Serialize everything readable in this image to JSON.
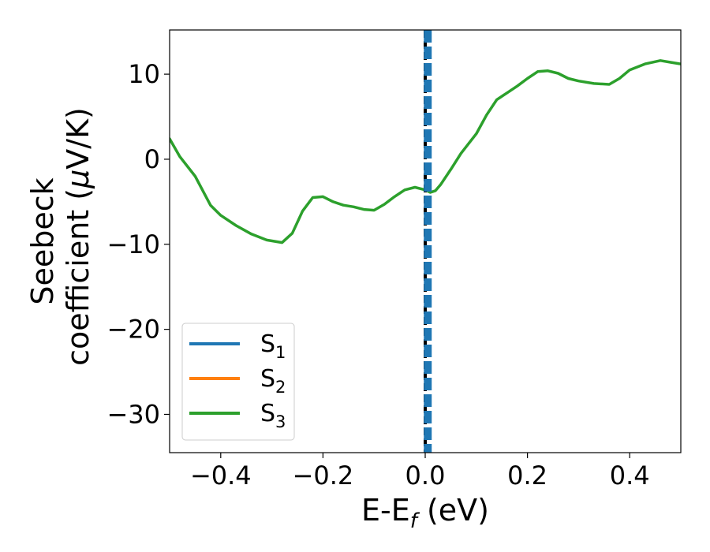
{
  "chart_data": {
    "type": "line",
    "title": "",
    "xlabel": {
      "base": "E-E",
      "sub": "f",
      "suffix": " (eV)"
    },
    "ylabel": {
      "line1": "Seebeck",
      "line2_prefix": "coefficient  (",
      "mu": "μ",
      "line2_suffix": "V/K)"
    },
    "xlim": [
      -0.5,
      0.5
    ],
    "ylim": [
      -34.5,
      15.2
    ],
    "xticks": [
      -0.4,
      -0.2,
      0.0,
      0.2,
      0.4
    ],
    "xtick_labels": [
      "−0.4",
      "−0.2",
      "0.0",
      "0.2",
      "0.4"
    ],
    "yticks": [
      10,
      0,
      -10,
      -20,
      -30
    ],
    "ytick_labels": [
      "10",
      "0",
      "−10",
      "−20",
      "−30"
    ],
    "legend_position": "bottom-left",
    "series": [
      {
        "name": "S",
        "sub": "1",
        "color": "#1f77b4",
        "style": "solid",
        "x": [],
        "y": []
      },
      {
        "name": "S",
        "sub": "2",
        "color": "#ff7f0e",
        "style": "solid",
        "x": [],
        "y": []
      },
      {
        "name": "S",
        "sub": "3",
        "color": "#2ca02c",
        "style": "solid",
        "x": [
          -0.5,
          -0.48,
          -0.45,
          -0.42,
          -0.4,
          -0.37,
          -0.34,
          -0.31,
          -0.28,
          -0.26,
          -0.24,
          -0.22,
          -0.2,
          -0.18,
          -0.16,
          -0.14,
          -0.12,
          -0.1,
          -0.08,
          -0.06,
          -0.04,
          -0.02,
          0.0,
          0.01,
          0.02,
          0.03,
          0.05,
          0.07,
          0.1,
          0.12,
          0.14,
          0.16,
          0.18,
          0.2,
          0.22,
          0.24,
          0.26,
          0.28,
          0.3,
          0.33,
          0.36,
          0.38,
          0.4,
          0.43,
          0.46,
          0.48,
          0.5
        ],
        "y": [
          2.4,
          0.3,
          -2.0,
          -5.4,
          -6.6,
          -7.8,
          -8.8,
          -9.5,
          -9.8,
          -8.7,
          -6.1,
          -4.5,
          -4.4,
          -5.0,
          -5.4,
          -5.6,
          -5.9,
          -6.0,
          -5.3,
          -4.4,
          -3.6,
          -3.3,
          -3.6,
          -3.9,
          -3.7,
          -3.0,
          -1.2,
          0.7,
          3.0,
          5.2,
          7.0,
          7.8,
          8.6,
          9.5,
          10.3,
          10.4,
          10.1,
          9.5,
          9.2,
          8.9,
          8.8,
          9.5,
          10.5,
          11.2,
          11.6,
          11.4,
          11.2
        ]
      }
    ],
    "vlines": [
      {
        "x": 0.0,
        "color": "#000000",
        "style": "dashed"
      },
      {
        "x": 0.005,
        "color": "#1f77b4",
        "style": "dashed-thick"
      }
    ]
  }
}
